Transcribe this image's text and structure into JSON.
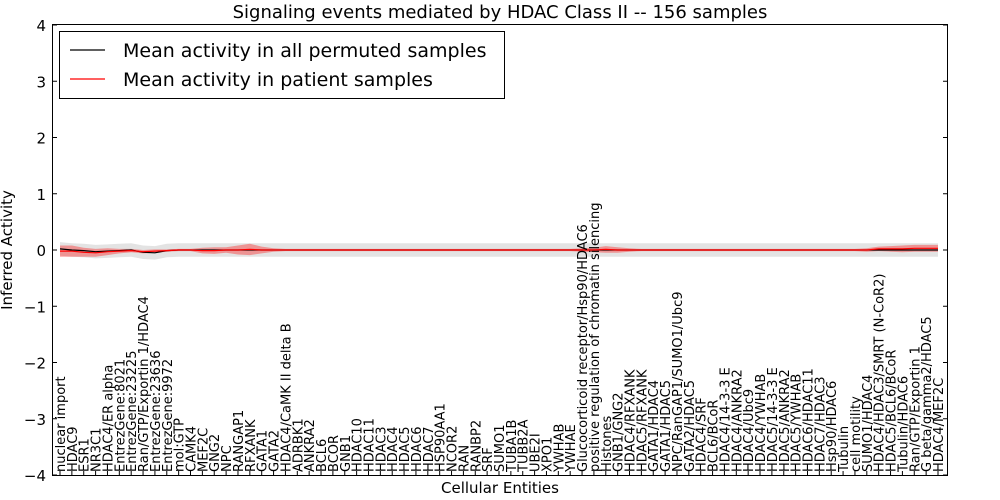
{
  "chart_data": {
    "type": "line",
    "title": "Signaling events mediated by HDAC Class II -- 156 samples",
    "xlabel": "Cellular Entities",
    "ylabel": "Inferred Activity",
    "ylim": [
      -4,
      4
    ],
    "yticks": [
      "4",
      "3",
      "2",
      "1",
      "0",
      "−1",
      "−2",
      "−3",
      "−4"
    ],
    "ytick_values": [
      4,
      3,
      2,
      1,
      0,
      -1,
      -2,
      -3,
      -4
    ],
    "legend": {
      "location": "upper-left",
      "entries": [
        {
          "label": "Mean activity in all permuted samples",
          "color": "#000000"
        },
        {
          "label": "Mean activity in patient samples",
          "color": "#ff0000"
        }
      ]
    },
    "categories": [
      "nuclear import",
      "HDAC9",
      "ESR1",
      "NR3C1",
      "HDAC4/ER alpha",
      "EntrezGene:8021",
      "EntrezGene:23225",
      "Ran/GTP/Exportin 1/HDAC4",
      "EntrezGene:23636",
      "EntrezGene:9972",
      "mol:GTP",
      "CAMK4",
      "MEF2C",
      "GNG2",
      "NPC",
      "RANGAP1",
      "RFXANK",
      "GATA1",
      "GATA2",
      "HDAC4/CaMK II delta B",
      "ADRBK1",
      "ANKRA2",
      "BCL6",
      "BCOR",
      "GNB1",
      "HDAC10",
      "HDAC11",
      "HDAC3",
      "HDAC4",
      "HDAC5",
      "HDAC6",
      "HDAC7",
      "HSP90AA1",
      "NCOR2",
      "RAN",
      "RANBP2",
      "SRF",
      "SUMO1",
      "TUBA1B",
      "TUBB2A",
      "UBE2I",
      "XPO1",
      "YWHAB",
      "YWHAE",
      "Glucocorticoid receptor/Hsp90/HDAC6",
      "positive regulation of chromatin silencing",
      "Histones",
      "GNB1/GNG2",
      "HDAC4/RFXANK",
      "HDAC5/RFXANK",
      "GATA1/HDAC4",
      "GATA1/HDAC5",
      "NPC/RanGAP1/SUMO1/Ubc9",
      "GATA2/HDAC5",
      "HDAC4/SRF",
      "BCL6/BCoR",
      "HDAC4/14-3-3 E",
      "HDAC4/ANKRA2",
      "HDAC4/Ubc9",
      "HDAC4/YWHAB",
      "HDAC5/14-3-3 E",
      "HDAC5/ANKRA2",
      "HDAC5/YWHAB",
      "HDAC6/HDAC11",
      "HDAC7/HDAC3",
      "Hsp90/HDAC6",
      "Tubulin",
      "cell motility",
      "SUMO1/HDAC4",
      "HDAC4/HDAC3/SMRT (N-CoR2)",
      "HDAC5/BCL6/BCoR",
      "Tubulin/HDAC6",
      "Ran/GTP/Exportin 1",
      "G beta/gamma2/HDAC5",
      "HDAC4/MEF2C"
    ],
    "series": [
      {
        "name": "Mean activity in all permuted samples",
        "color": "#000000",
        "values": [
          0.02,
          0.0,
          -0.01,
          -0.03,
          -0.02,
          -0.01,
          0.0,
          -0.04,
          -0.05,
          -0.01,
          0.0,
          0.0,
          0.0,
          0.0,
          0.0,
          0.0,
          0.0,
          0.0,
          0.0,
          0.0,
          0.0,
          0.0,
          0.0,
          0.0,
          0.0,
          0.0,
          0.0,
          0.0,
          0.0,
          0.0,
          0.0,
          0.0,
          0.0,
          0.0,
          0.0,
          0.0,
          0.0,
          0.0,
          0.0,
          0.0,
          0.0,
          0.0,
          0.0,
          0.0,
          0.0,
          0.0,
          0.0,
          0.0,
          0.0,
          0.0,
          0.0,
          0.0,
          0.0,
          0.0,
          0.0,
          0.0,
          0.0,
          0.0,
          0.0,
          0.0,
          0.0,
          0.0,
          0.0,
          0.0,
          0.0,
          0.0,
          0.0,
          0.0,
          0.0,
          0.0,
          0.0,
          0.0,
          0.0,
          0.0,
          0.0
        ],
        "band": 0.12
      },
      {
        "name": "Mean activity in patient samples",
        "color": "#ff0000",
        "values": [
          -0.02,
          -0.02,
          -0.04,
          -0.05,
          -0.03,
          -0.02,
          -0.01,
          -0.03,
          -0.02,
          -0.01,
          0.0,
          0.0,
          -0.01,
          -0.01,
          0.0,
          0.0,
          0.01,
          0.0,
          0.0,
          0.0,
          0.0,
          0.0,
          0.0,
          0.0,
          0.0,
          0.0,
          0.0,
          0.0,
          0.0,
          0.0,
          0.0,
          0.0,
          0.0,
          0.0,
          0.0,
          0.0,
          0.0,
          0.0,
          0.0,
          0.0,
          0.0,
          0.0,
          0.0,
          0.0,
          0.0,
          0.0,
          0.01,
          0.0,
          0.0,
          0.0,
          0.0,
          0.0,
          0.0,
          0.0,
          0.0,
          0.0,
          0.0,
          0.0,
          0.0,
          0.0,
          0.0,
          0.0,
          0.0,
          0.0,
          0.0,
          0.0,
          0.0,
          0.0,
          0.0,
          0.02,
          0.02,
          0.02,
          0.03,
          0.03,
          0.03
        ],
        "band": [
          0.1,
          0.1,
          0.08,
          0.07,
          0.06,
          0.04,
          0.03,
          0.03,
          0.03,
          0.02,
          0.02,
          0.02,
          0.05,
          0.06,
          0.05,
          0.08,
          0.1,
          0.06,
          0.03,
          0.02,
          0.02,
          0.02,
          0.02,
          0.02,
          0.02,
          0.02,
          0.02,
          0.02,
          0.02,
          0.02,
          0.02,
          0.02,
          0.02,
          0.02,
          0.02,
          0.02,
          0.02,
          0.02,
          0.02,
          0.02,
          0.02,
          0.02,
          0.02,
          0.02,
          0.03,
          0.04,
          0.06,
          0.05,
          0.03,
          0.02,
          0.02,
          0.02,
          0.02,
          0.02,
          0.02,
          0.02,
          0.02,
          0.02,
          0.02,
          0.02,
          0.02,
          0.02,
          0.02,
          0.02,
          0.02,
          0.02,
          0.02,
          0.02,
          0.03,
          0.04,
          0.05,
          0.06,
          0.06,
          0.06,
          0.06
        ]
      }
    ]
  }
}
